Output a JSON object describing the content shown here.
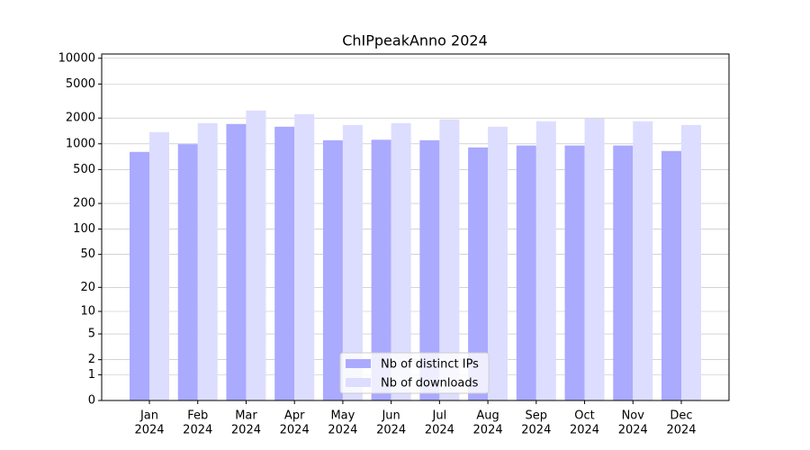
{
  "chart_data": {
    "type": "bar",
    "title": "ChIPpeakAnno 2024",
    "categories": [
      [
        "Jan",
        "2024"
      ],
      [
        "Feb",
        "2024"
      ],
      [
        "Mar",
        "2024"
      ],
      [
        "Apr",
        "2024"
      ],
      [
        "May",
        "2024"
      ],
      [
        "Jun",
        "2024"
      ],
      [
        "Jul",
        "2024"
      ],
      [
        "Aug",
        "2024"
      ],
      [
        "Sep",
        "2024"
      ],
      [
        "Oct",
        "2024"
      ],
      [
        "Nov",
        "2024"
      ],
      [
        "Dec",
        "2024"
      ]
    ],
    "series": [
      {
        "name": "Nb of distinct IPs",
        "color": "#aaaaff",
        "values": [
          804,
          990,
          1705,
          1585,
          1100,
          1115,
          1100,
          907,
          955,
          955,
          955,
          824
        ]
      },
      {
        "name": "Nb of downloads",
        "color": "#ddddff",
        "values": [
          1370,
          1745,
          2450,
          2225,
          1660,
          1745,
          1925,
          1585,
          1835,
          1970,
          1835,
          1660
        ]
      }
    ],
    "yscale": "log1p",
    "ylim": [
      0,
      11220
    ],
    "yticks": [
      0,
      1,
      2,
      5,
      10,
      20,
      50,
      100,
      200,
      500,
      1000,
      2000,
      5000,
      10000
    ],
    "grid": true,
    "legend": "lower center"
  }
}
